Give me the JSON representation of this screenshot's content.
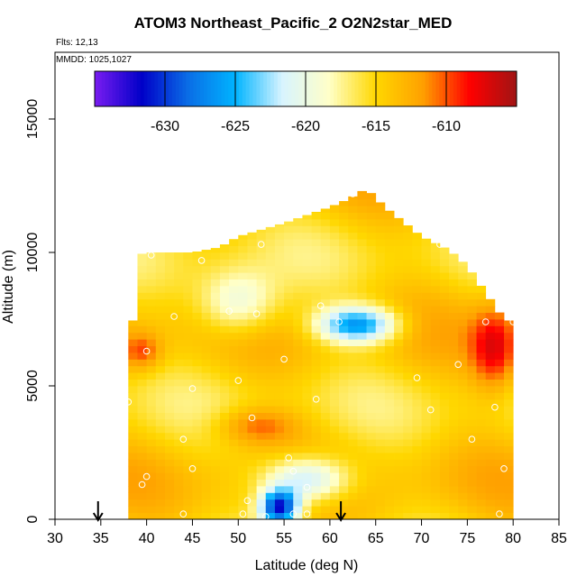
{
  "chart_data": {
    "type": "heatmap",
    "title": "ATOM3 Northeast_Pacific_2 O2N2star_MED",
    "notes": {
      "flights": "Flts: 12,13",
      "dates": "MMDD: 1025,1027"
    },
    "xlabel": "Latitude (deg N)",
    "ylabel": "Altitude (m)",
    "xlim": [
      30,
      85
    ],
    "ylim": [
      0,
      17500
    ],
    "xticks": [
      30,
      35,
      40,
      45,
      50,
      55,
      60,
      65,
      70,
      75,
      80,
      85
    ],
    "yticks": [
      0,
      5000,
      10000,
      15000
    ],
    "colorbar": {
      "range": [
        -635,
        -605
      ],
      "ticks": [
        -630,
        -625,
        -620,
        -615,
        -610
      ],
      "colors": [
        "#7a1cf0",
        "#0000c8",
        "#0a6ee6",
        "#00b4ff",
        "#d8f4ff",
        "#ffffc8",
        "#ffd700",
        "#ffa000",
        "#ff0000",
        "#a01414"
      ]
    },
    "envelope": [
      [
        38,
        0,
        5000
      ],
      [
        39,
        0,
        9900
      ],
      [
        40,
        0,
        10000
      ],
      [
        45,
        0,
        10000
      ],
      [
        48,
        0,
        10200
      ],
      [
        50,
        0,
        10600
      ],
      [
        55,
        0,
        11100
      ],
      [
        60,
        0,
        11700
      ],
      [
        62,
        0,
        12000
      ],
      [
        64,
        0,
        12400
      ],
      [
        66,
        0,
        11700
      ],
      [
        70,
        0,
        10600
      ],
      [
        73,
        0,
        10100
      ],
      [
        75,
        0,
        9500
      ],
      [
        77,
        0,
        8500
      ],
      [
        79,
        0,
        7500
      ],
      [
        80,
        0,
        7400
      ]
    ],
    "features": [
      {
        "lat": [
          53,
          56
        ],
        "alt": [
          0,
          900
        ],
        "value": -631
      },
      {
        "lat": [
          59,
          67
        ],
        "alt": [
          6800,
          7800
        ],
        "value": -627
      },
      {
        "lat": [
          53,
          62
        ],
        "alt": [
          800,
          2200
        ],
        "value": -624
      },
      {
        "lat": [
          46,
          54
        ],
        "alt": [
          7000,
          9200
        ],
        "value": -621
      },
      {
        "lat": [
          38,
          41
        ],
        "alt": [
          5800,
          6800
        ],
        "value": -610
      },
      {
        "lat": [
          48,
          56
        ],
        "alt": [
          3000,
          4000
        ],
        "value": -610
      },
      {
        "lat": [
          76,
          80
        ],
        "alt": [
          5000,
          7800
        ],
        "value": -608
      }
    ],
    "samples": [
      [
        38.5,
        9900
      ],
      [
        40.5,
        9900
      ],
      [
        46,
        9700
      ],
      [
        52.5,
        10300
      ],
      [
        62.5,
        12200
      ],
      [
        72,
        10300
      ],
      [
        43,
        7600
      ],
      [
        49,
        7800
      ],
      [
        52,
        7700
      ],
      [
        59,
        8000
      ],
      [
        61,
        7400
      ],
      [
        77,
        7400
      ],
      [
        80,
        7400
      ],
      [
        40,
        6300
      ],
      [
        55,
        6000
      ],
      [
        74,
        5800
      ],
      [
        45,
        4900
      ],
      [
        50,
        5200
      ],
      [
        58.5,
        4500
      ],
      [
        69.5,
        5300
      ],
      [
        71,
        4100
      ],
      [
        78,
        4200
      ],
      [
        38,
        4400
      ],
      [
        51.5,
        3800
      ],
      [
        44,
        3000
      ],
      [
        75.5,
        3000
      ],
      [
        55.5,
        2300
      ],
      [
        45,
        1900
      ],
      [
        56,
        1800
      ],
      [
        40,
        1600
      ],
      [
        57.5,
        1200
      ],
      [
        79,
        1900
      ],
      [
        39.5,
        1300
      ],
      [
        51,
        700
      ],
      [
        44,
        200
      ],
      [
        50.5,
        200
      ],
      [
        53,
        100
      ],
      [
        56,
        200
      ],
      [
        57.5,
        200
      ],
      [
        78.5,
        200
      ]
    ],
    "arrows": [
      34.7,
      61.2
    ]
  }
}
